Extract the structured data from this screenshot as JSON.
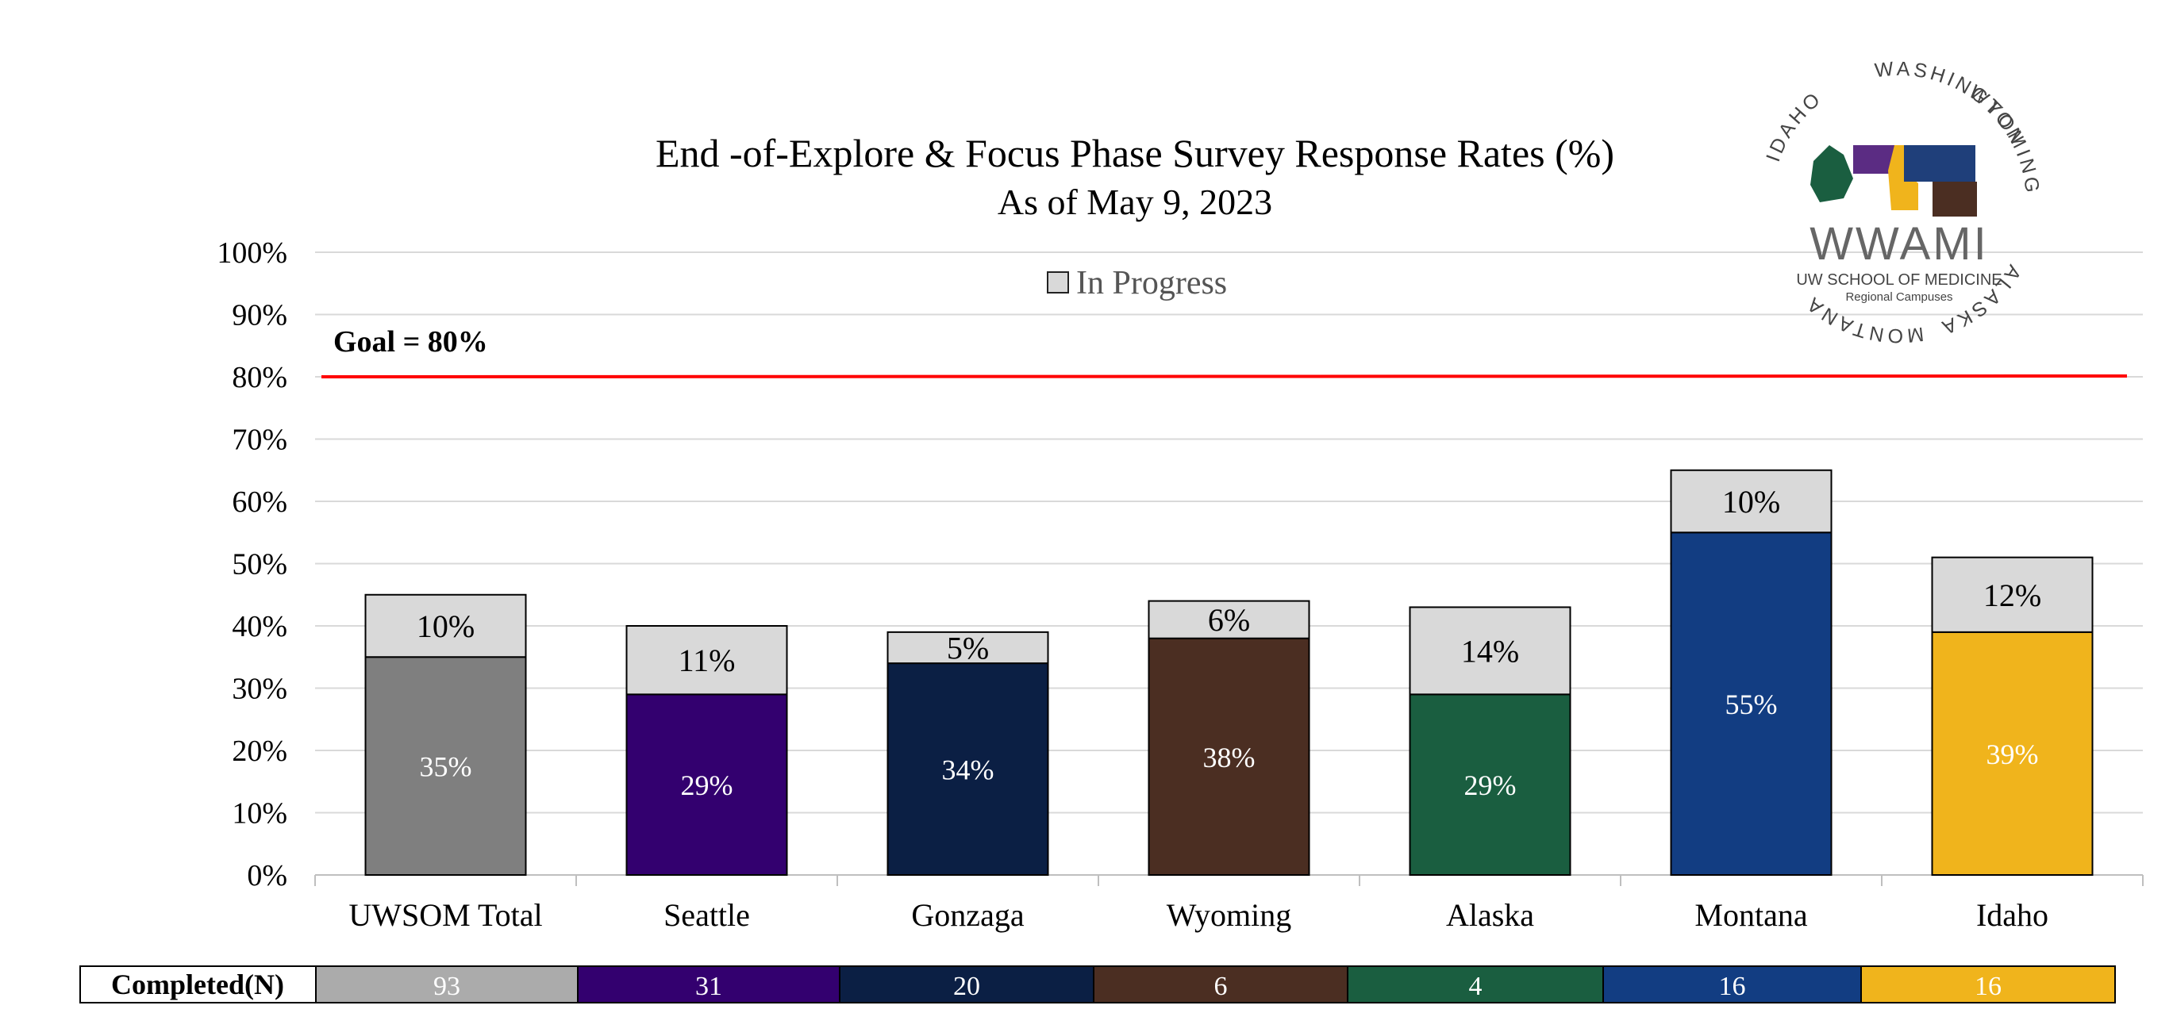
{
  "chart_data": {
    "type": "bar",
    "stacked": true,
    "title": "End -of-Explore & Focus Phase Survey Response Rates (%)",
    "subtitle": "As of May 9, 2023",
    "categories": [
      "UWSOM Total",
      "Seattle",
      "Gonzaga",
      "Wyoming",
      "Alaska",
      "Montana",
      "Idaho"
    ],
    "series": [
      {
        "name": "",
        "values": [
          35,
          29,
          34,
          38,
          29,
          55,
          39
        ],
        "labels": [
          "35%",
          "29%",
          "34%",
          "38%",
          "29%",
          "55%",
          "39%"
        ],
        "colors": [
          "#7f7f7f",
          "#33006f",
          "#0b1f44",
          "#4b2e22",
          "#1a5e40",
          "#123d82",
          "#f0b41c"
        ]
      },
      {
        "name": "In Progress",
        "values": [
          10,
          11,
          5,
          6,
          14,
          10,
          12
        ],
        "labels": [
          "10%",
          "11%",
          "5%",
          "6%",
          "14%",
          "10%",
          "12%"
        ],
        "color": "#d9d9d9"
      }
    ],
    "y_ticks": [
      "0%",
      "10%",
      "20%",
      "30%",
      "40%",
      "50%",
      "60%",
      "70%",
      "80%",
      "90%",
      "100%"
    ],
    "ylim": [
      0,
      100
    ],
    "goal": {
      "value": 80,
      "label": "Goal = 80%",
      "color": "#ff0000"
    },
    "legend": {
      "placement": "top-center",
      "entries": [
        "In Progress"
      ]
    },
    "grid": true,
    "table": {
      "header": "Completed(N)",
      "values": [
        "93",
        "31",
        "20",
        "6",
        "4",
        "16",
        "16"
      ],
      "colors": [
        "#ababab",
        "#33006f",
        "#0b1f44",
        "#4b2e22",
        "#1a5e40",
        "#123d82",
        "#f0b41c"
      ]
    }
  },
  "logo": {
    "main": "WWAMI",
    "sub": "UW SCHOOL OF MEDICINE",
    "subsub": "Regional Campuses",
    "ring": [
      "WASHINGTON",
      "WYOMING",
      "ALASKA",
      "MONTANA",
      "IDAHO"
    ]
  }
}
